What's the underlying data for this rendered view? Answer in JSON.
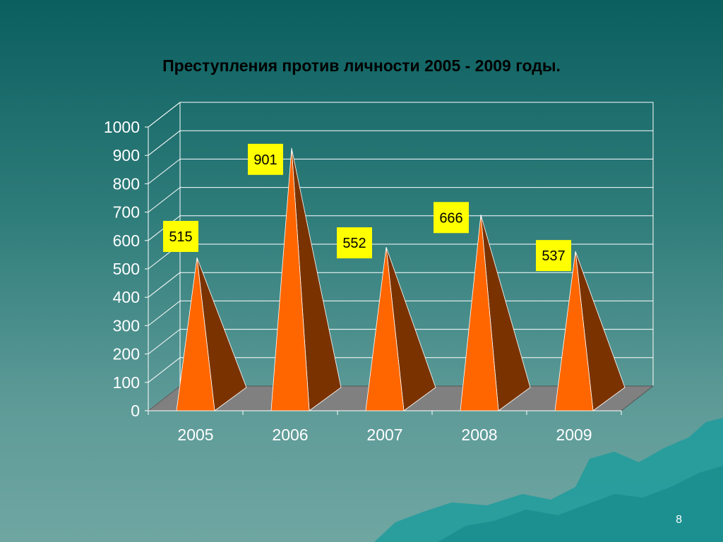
{
  "slide": {
    "title": "Преступления против личности 2005 - 2009 годы.",
    "page_number": "8"
  },
  "colors": {
    "front_face": "#ff6600",
    "side_face": "#7a3300",
    "floor": "#808080",
    "label_bg": "#ffff00",
    "grid": "#ffffff",
    "mountain": "#1e9c9c"
  },
  "chart_data": {
    "type": "bar",
    "subtype": "3d-pyramid",
    "title": "Преступления против личности 2005 - 2009 годы.",
    "categories": [
      "2005",
      "2006",
      "2007",
      "2008",
      "2009"
    ],
    "values": [
      515,
      901,
      552,
      666,
      537
    ],
    "data_labels": [
      "515",
      "901",
      "552",
      "666",
      "537"
    ],
    "ylim": [
      0,
      1000
    ],
    "yticks": [
      "0",
      "100",
      "200",
      "300",
      "400",
      "500",
      "600",
      "700",
      "800",
      "900",
      "1000"
    ],
    "grid": true,
    "legend": "none"
  }
}
